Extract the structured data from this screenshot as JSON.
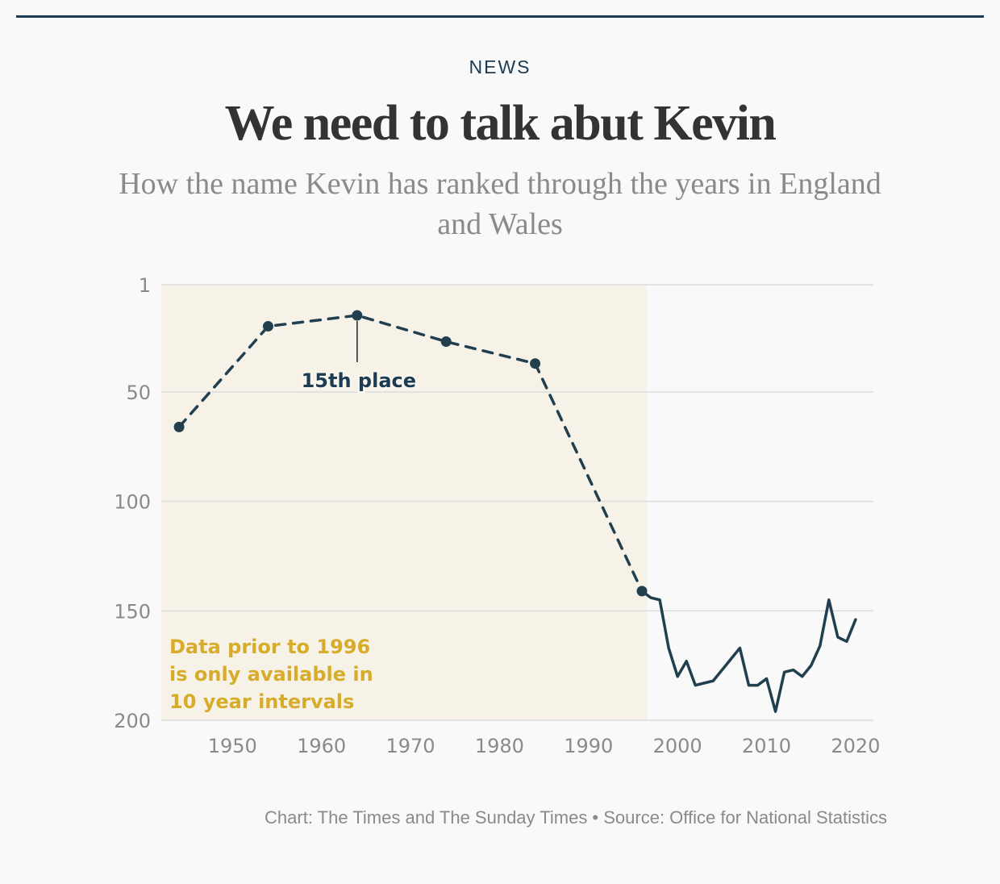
{
  "header": {
    "kicker": "NEWS",
    "title": "We need to talk abut Kevin",
    "subtitle": "How the name Kevin has ranked through the years in England and Wales"
  },
  "footer": {
    "source": "Chart: The Times and The Sunday Times • Source: Office for National Statistics"
  },
  "colors": {
    "line": "#223f4f",
    "shade": "#f6f2e7",
    "note": "#d8ac2b",
    "grid": "#dcdcdc"
  },
  "chart_data": {
    "type": "line",
    "title": "We need to talk abut Kevin",
    "xlabel": "",
    "ylabel": "",
    "xlim": [
      1942,
      2022
    ],
    "ylim": [
      200,
      1
    ],
    "y_inverted": true,
    "grid": true,
    "x_ticks": [
      1950,
      1960,
      1970,
      1980,
      1990,
      2000,
      2010,
      2020
    ],
    "y_ticks": [
      1,
      50,
      100,
      150,
      200
    ],
    "shaded_region": {
      "x_start": 1942,
      "x_end": 1996
    },
    "series": [
      {
        "style": "dashed-with-markers",
        "x": [
          1944,
          1954,
          1964,
          1974,
          1984,
          1996
        ],
        "y": [
          66,
          20,
          15,
          27,
          37,
          141
        ]
      },
      {
        "style": "solid",
        "x": [
          1996,
          1997,
          1998,
          1999,
          2000,
          2001,
          2002,
          2003,
          2004,
          2005,
          2006,
          2007,
          2008,
          2009,
          2010,
          2011,
          2012,
          2013,
          2014,
          2015,
          2016,
          2017,
          2018,
          2019,
          2020
        ],
        "y": [
          141,
          144,
          145,
          167,
          180,
          173,
          184,
          183,
          182,
          177,
          172,
          167,
          184,
          184,
          181,
          196,
          178,
          177,
          180,
          175,
          166,
          145,
          162,
          164,
          154
        ]
      }
    ],
    "annotations": [
      {
        "x": 1964,
        "y": 15,
        "text": "15th place"
      },
      {
        "type": "note",
        "lines": [
          "Data prior to 1996",
          "is only available in",
          "10 year intervals"
        ]
      }
    ]
  }
}
